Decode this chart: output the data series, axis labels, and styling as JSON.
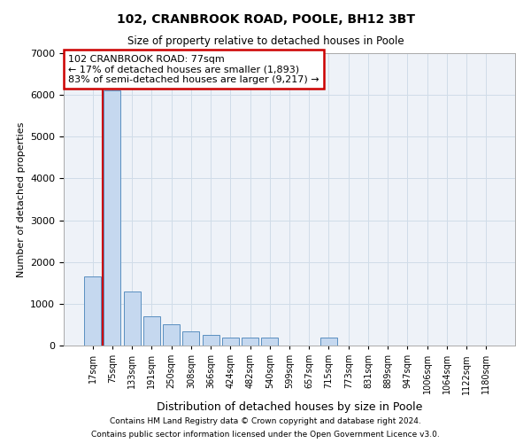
{
  "title1": "102, CRANBROOK ROAD, POOLE, BH12 3BT",
  "title2": "Size of property relative to detached houses in Poole",
  "xlabel": "Distribution of detached houses by size in Poole",
  "ylabel": "Number of detached properties",
  "categories": [
    "17sqm",
    "75sqm",
    "133sqm",
    "191sqm",
    "250sqm",
    "308sqm",
    "366sqm",
    "424sqm",
    "482sqm",
    "540sqm",
    "599sqm",
    "657sqm",
    "715sqm",
    "773sqm",
    "831sqm",
    "889sqm",
    "947sqm",
    "1006sqm",
    "1064sqm",
    "1122sqm",
    "1180sqm"
  ],
  "values": [
    1650,
    6100,
    1300,
    700,
    500,
    350,
    250,
    200,
    200,
    200,
    0,
    0,
    200,
    0,
    0,
    0,
    0,
    0,
    0,
    0,
    0
  ],
  "bar_color": "#c5d8ef",
  "bar_edge_color": "#5a8fc0",
  "grid_color": "#d0dce8",
  "bg_color": "#eef2f8",
  "vline_x": 0.5,
  "vline_color": "#cc0000",
  "box_text_line1": "102 CRANBROOK ROAD: 77sqm",
  "box_text_line2": "← 17% of detached houses are smaller (1,893)",
  "box_text_line3": "83% of semi-detached houses are larger (9,217) →",
  "box_color": "#cc0000",
  "footnote1": "Contains HM Land Registry data © Crown copyright and database right 2024.",
  "footnote2": "Contains public sector information licensed under the Open Government Licence v3.0.",
  "ylim": [
    0,
    7000
  ],
  "yticks": [
    0,
    1000,
    2000,
    3000,
    4000,
    5000,
    6000,
    7000
  ]
}
